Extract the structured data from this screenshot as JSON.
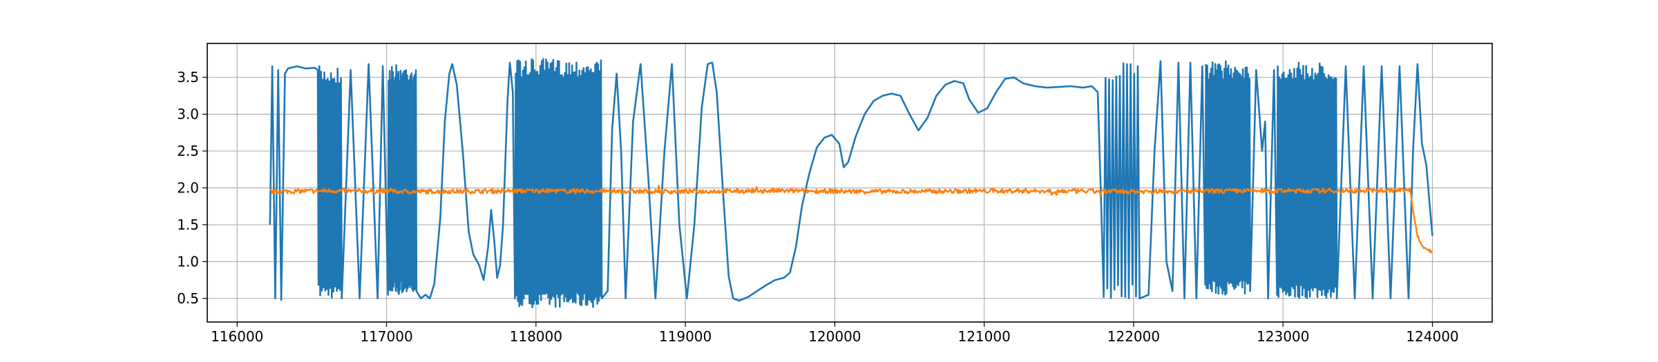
{
  "chart_data": {
    "type": "line",
    "title": "",
    "xlabel": "",
    "ylabel": "",
    "xlim": [
      115800,
      124400
    ],
    "ylim": [
      0.18,
      3.96
    ],
    "grid": true,
    "xticks": [
      116000,
      117000,
      118000,
      119000,
      120000,
      121000,
      122000,
      123000,
      124000
    ],
    "xtick_labels": [
      "116000",
      "117000",
      "118000",
      "119000",
      "120000",
      "121000",
      "122000",
      "123000",
      "124000"
    ],
    "yticks": [
      0.5,
      1.0,
      1.5,
      2.0,
      2.5,
      3.0,
      3.5
    ],
    "ytick_labels": [
      "0.5",
      "1.0",
      "1.5",
      "2.0",
      "2.5",
      "3.0",
      "3.5"
    ],
    "series": [
      {
        "color": "#1f77b4",
        "segments": [
          {
            "mode": "points",
            "points": [
              [
                116220,
                1.5
              ],
              [
                116235,
                3.65
              ],
              [
                116255,
                0.5
              ],
              [
                116275,
                3.6
              ],
              [
                116295,
                0.48
              ],
              [
                116320,
                3.55
              ],
              [
                116340,
                3.62
              ],
              [
                116400,
                3.65
              ],
              [
                116460,
                3.62
              ],
              [
                116520,
                3.63
              ],
              [
                116540,
                3.6
              ]
            ]
          },
          {
            "mode": "osc",
            "x0": 116545,
            "x1": 116700,
            "n": 14,
            "lo": 0.5,
            "hi": 3.65
          },
          {
            "mode": "points",
            "points": [
              [
                116700,
                0.5
              ],
              [
                116760,
                3.6
              ],
              [
                116820,
                0.5
              ],
              [
                116880,
                3.68
              ],
              [
                116940,
                0.5
              ],
              [
                116975,
                3.65
              ],
              [
                117010,
                0.55
              ]
            ]
          },
          {
            "mode": "osc",
            "x0": 117010,
            "x1": 117200,
            "n": 26,
            "lo": 0.55,
            "hi": 3.68
          },
          {
            "mode": "points",
            "points": [
              [
                117200,
                0.6
              ],
              [
                117230,
                0.5
              ],
              [
                117260,
                0.55
              ],
              [
                117290,
                0.5
              ],
              [
                117320,
                0.7
              ],
              [
                117360,
                1.6
              ],
              [
                117390,
                2.9
              ],
              [
                117420,
                3.55
              ],
              [
                117440,
                3.68
              ],
              [
                117470,
                3.4
              ],
              [
                117510,
                2.5
              ],
              [
                117550,
                1.4
              ],
              [
                117580,
                1.1
              ],
              [
                117620,
                0.95
              ],
              [
                117650,
                0.75
              ],
              [
                117680,
                1.2
              ],
              [
                117700,
                1.7
              ],
              [
                117720,
                1.3
              ],
              [
                117740,
                0.78
              ],
              [
                117760,
                0.95
              ],
              [
                117780,
                1.5
              ],
              [
                117810,
                3.2
              ],
              [
                117825,
                3.7
              ],
              [
                117845,
                3.3
              ],
              [
                117860,
                0.5
              ]
            ]
          },
          {
            "mode": "osc",
            "x0": 117860,
            "x1": 118440,
            "n": 60,
            "lo": 0.38,
            "hi": 3.75
          },
          {
            "mode": "points",
            "points": [
              [
                118440,
                0.5
              ],
              [
                118480,
                0.6
              ],
              [
                118510,
                2.8
              ],
              [
                118540,
                3.55
              ],
              [
                118570,
                2.5
              ],
              [
                118600,
                0.5
              ],
              [
                118650,
                2.9
              ],
              [
                118700,
                3.68
              ],
              [
                118750,
                2.2
              ],
              [
                118800,
                0.5
              ],
              [
                118860,
                2.5
              ],
              [
                118910,
                3.68
              ],
              [
                118960,
                1.5
              ],
              [
                119010,
                0.5
              ],
              [
                119060,
                1.5
              ],
              [
                119110,
                3.1
              ],
              [
                119150,
                3.68
              ],
              [
                119180,
                3.7
              ],
              [
                119210,
                3.3
              ],
              [
                119250,
                2.0
              ],
              [
                119290,
                0.8
              ],
              [
                119320,
                0.5
              ],
              [
                119360,
                0.47
              ],
              [
                119420,
                0.52
              ],
              [
                119480,
                0.6
              ],
              [
                119540,
                0.68
              ],
              [
                119600,
                0.75
              ],
              [
                119660,
                0.78
              ],
              [
                119700,
                0.85
              ],
              [
                119740,
                1.2
              ],
              [
                119780,
                1.75
              ],
              [
                119830,
                2.2
              ],
              [
                119880,
                2.55
              ],
              [
                119930,
                2.68
              ],
              [
                119980,
                2.72
              ],
              [
                120030,
                2.6
              ],
              [
                120060,
                2.28
              ],
              [
                120090,
                2.35
              ],
              [
                120140,
                2.7
              ],
              [
                120200,
                3.0
              ],
              [
                120260,
                3.18
              ],
              [
                120320,
                3.25
              ],
              [
                120380,
                3.28
              ],
              [
                120440,
                3.25
              ],
              [
                120500,
                3.0
              ],
              [
                120560,
                2.78
              ],
              [
                120620,
                2.95
              ],
              [
                120680,
                3.25
              ],
              [
                120740,
                3.4
              ],
              [
                120800,
                3.45
              ],
              [
                120860,
                3.42
              ],
              [
                120900,
                3.2
              ],
              [
                120960,
                3.02
              ],
              [
                121020,
                3.08
              ],
              [
                121080,
                3.3
              ],
              [
                121140,
                3.48
              ],
              [
                121200,
                3.5
              ],
              [
                121260,
                3.42
              ],
              [
                121340,
                3.38
              ],
              [
                121420,
                3.36
              ],
              [
                121500,
                3.37
              ],
              [
                121580,
                3.38
              ],
              [
                121660,
                3.36
              ],
              [
                121720,
                3.38
              ],
              [
                121760,
                3.3
              ],
              [
                121780,
                2.0
              ],
              [
                121800,
                0.52
              ]
            ]
          },
          {
            "mode": "osc",
            "x0": 121800,
            "x1": 122040,
            "n": 10,
            "lo": 0.5,
            "hi": 3.7
          },
          {
            "mode": "points",
            "points": [
              [
                122040,
                0.5
              ],
              [
                122100,
                0.55
              ],
              [
                122140,
                2.5
              ],
              [
                122180,
                3.72
              ],
              [
                122220,
                1.0
              ],
              [
                122260,
                0.6
              ],
              [
                122300,
                3.7
              ],
              [
                122340,
                0.5
              ],
              [
                122380,
                3.7
              ],
              [
                122420,
                0.5
              ],
              [
                122460,
                3.65
              ]
            ]
          },
          {
            "mode": "osc",
            "x0": 122480,
            "x1": 122780,
            "n": 34,
            "lo": 0.55,
            "hi": 3.72
          },
          {
            "mode": "points",
            "points": [
              [
                122780,
                0.6
              ],
              [
                122820,
                3.6
              ],
              [
                122860,
                2.5
              ],
              [
                122880,
                2.9
              ],
              [
                122900,
                0.5
              ],
              [
                122940,
                3.6
              ],
              [
                122960,
                0.55
              ]
            ]
          },
          {
            "mode": "osc",
            "x0": 122960,
            "x1": 123360,
            "n": 40,
            "lo": 0.5,
            "hi": 3.7
          },
          {
            "mode": "points",
            "points": [
              [
                123360,
                0.5
              ],
              [
                123420,
                3.65
              ],
              [
                123480,
                0.5
              ],
              [
                123540,
                3.65
              ],
              [
                123600,
                0.5
              ],
              [
                123660,
                3.65
              ],
              [
                123720,
                0.5
              ],
              [
                123780,
                3.65
              ],
              [
                123840,
                0.5
              ],
              [
                123870,
                2.5
              ],
              [
                123900,
                3.68
              ],
              [
                123930,
                2.6
              ],
              [
                123960,
                2.3
              ],
              [
                123980,
                1.8
              ],
              [
                124000,
                1.35
              ]
            ]
          }
        ]
      },
      {
        "color": "#ff7f0e",
        "segments": [
          {
            "mode": "points",
            "points": [
              [
                116220,
                1.95
              ],
              [
                116600,
                1.96
              ],
              [
                117200,
                1.95
              ],
              [
                118000,
                1.96
              ],
              [
                118800,
                1.95
              ],
              [
                119600,
                1.96
              ],
              [
                120400,
                1.95
              ],
              [
                121200,
                1.96
              ],
              [
                122000,
                1.95
              ],
              [
                122800,
                1.96
              ],
              [
                123400,
                1.96
              ],
              [
                123850,
                1.97
              ],
              [
                123870,
                1.7
              ],
              [
                123900,
                1.35
              ],
              [
                123930,
                1.22
              ],
              [
                123960,
                1.17
              ],
              [
                124000,
                1.13
              ]
            ]
          }
        ]
      }
    ]
  }
}
